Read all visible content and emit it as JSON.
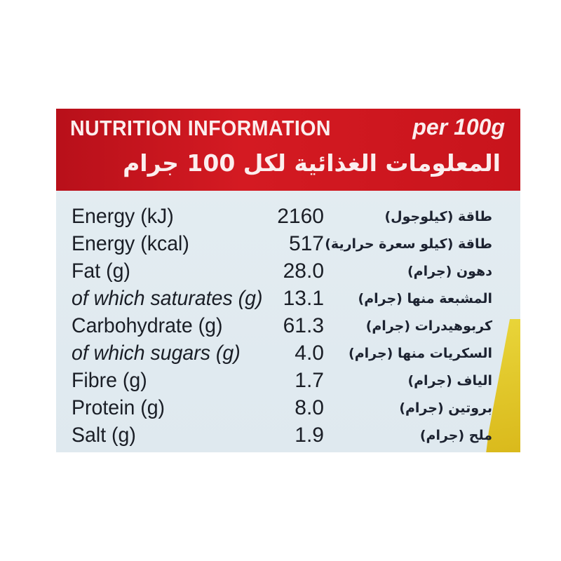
{
  "header": {
    "title": "NUTRITION INFORMATION",
    "per": "per 100g",
    "arabic_title": "المعلومات الغذائية لكل 100 جرام"
  },
  "colors": {
    "band": "#c8141c",
    "panel": "#e2ebf0",
    "text": "#1a1e26",
    "accent_yellow": "#e0c52a"
  },
  "rows": [
    {
      "label": "Energy (kJ)",
      "value": "2160",
      "arabic": "طاقة (كيلوجول)",
      "italic": false
    },
    {
      "label": "Energy (kcal)",
      "value": "517",
      "arabic": "طاقة (كيلو سعرة حرارية)",
      "italic": false
    },
    {
      "label": "Fat (g)",
      "value": "28.0",
      "arabic": "دهون (جرام)",
      "italic": false
    },
    {
      "label": "of which saturates (g)",
      "value": "13.1",
      "arabic": "المشبعة منها (جرام)",
      "italic": true
    },
    {
      "label": "Carbohydrate (g)",
      "value": "61.3",
      "arabic": "كربوهيدرات (جرام)",
      "italic": false
    },
    {
      "label": "of which sugars (g)",
      "value": "4.0",
      "arabic": "السكريات منها (جرام)",
      "italic": true
    },
    {
      "label": "Fibre (g)",
      "value": "1.7",
      "arabic": "الياف (جرام)",
      "italic": false
    },
    {
      "label": "Protein (g)",
      "value": "8.0",
      "arabic": "بروتين (جرام)",
      "italic": false
    },
    {
      "label": "Salt (g)",
      "value": "1.9",
      "arabic": "ملح (جرام)",
      "italic": false
    }
  ]
}
